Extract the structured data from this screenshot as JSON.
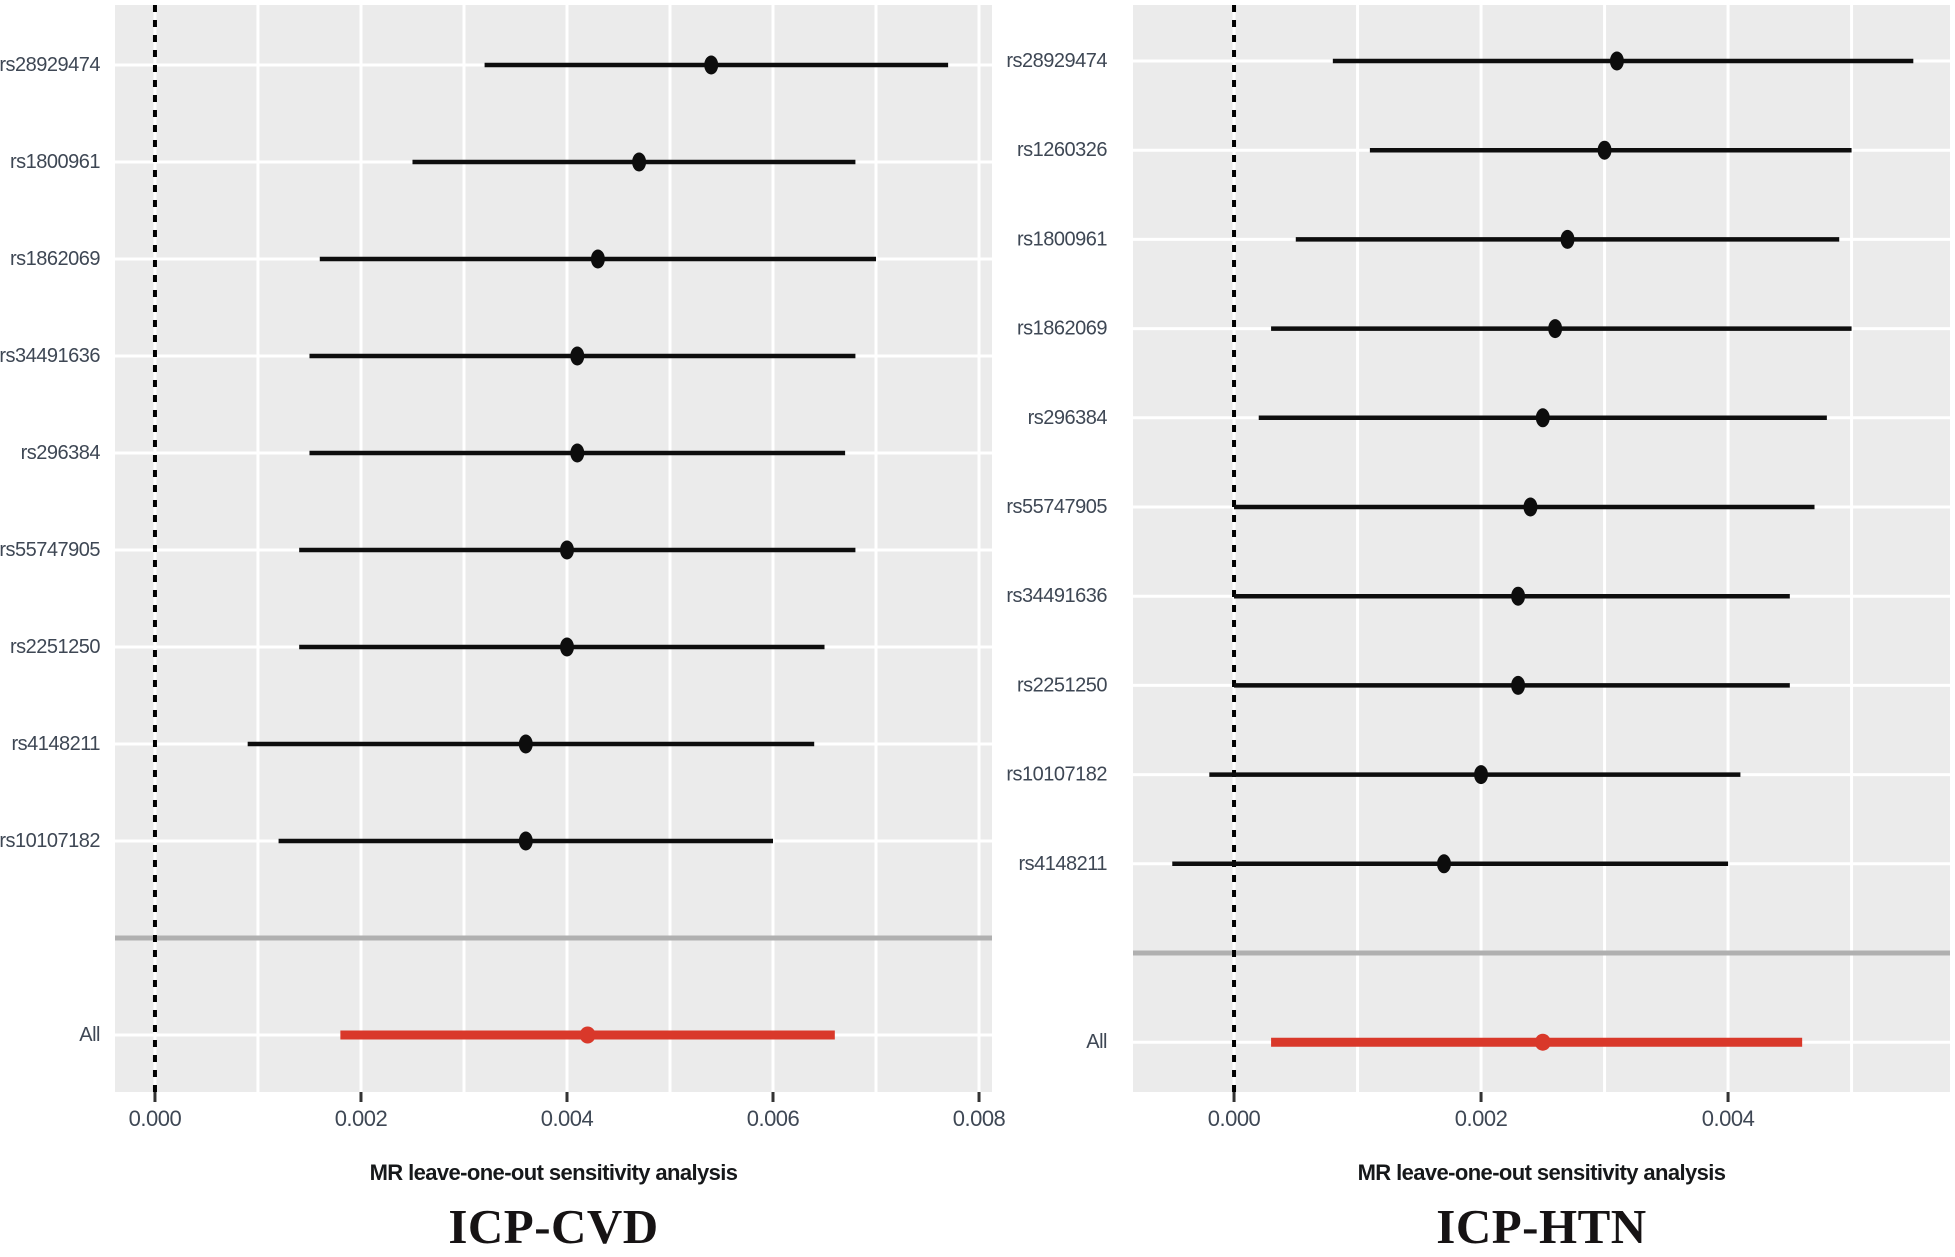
{
  "figure": {
    "kind": "MR leave-one-out forest plots",
    "panel_count": 2
  },
  "colors": {
    "panel_background": "#ebebeb",
    "gridline": "#ffffff",
    "separator_line": "#b0b0b0",
    "axis_text": "#3e4754",
    "tick_mark": "#333333",
    "ci_line": "#0d0d0d",
    "highlight_red": "#d9382a"
  },
  "chart_data": [
    {
      "type": "forest",
      "title": "ICP-CVD",
      "xlabel": "MR leave-one-out sensitivity analysis",
      "legend_position": "none",
      "grid": true,
      "gridline_step": 0.001,
      "zero_line": 0.0,
      "xlim": [
        -0.000388,
        0.008126
      ],
      "x_ticks": [
        {
          "value": 0.0,
          "label": "0.000"
        },
        {
          "value": 0.002,
          "label": "0.002"
        },
        {
          "value": 0.004,
          "label": "0.004"
        },
        {
          "value": 0.006,
          "label": "0.006"
        },
        {
          "value": 0.008,
          "label": "0.008"
        }
      ],
      "rows": [
        {
          "label": "rs28929474",
          "est": 0.0054,
          "lo": 0.0032,
          "hi": 0.0077
        },
        {
          "label": "rs1800961",
          "est": 0.0047,
          "lo": 0.0025,
          "hi": 0.0068
        },
        {
          "label": "rs1862069",
          "est": 0.0043,
          "lo": 0.0016,
          "hi": 0.007
        },
        {
          "label": "rs34491636",
          "est": 0.0041,
          "lo": 0.0015,
          "hi": 0.0068
        },
        {
          "label": "rs296384",
          "est": 0.0041,
          "lo": 0.0015,
          "hi": 0.0067
        },
        {
          "label": "rs55747905",
          "est": 0.004,
          "lo": 0.0014,
          "hi": 0.0068
        },
        {
          "label": "rs2251250",
          "est": 0.004,
          "lo": 0.0014,
          "hi": 0.0065
        },
        {
          "label": "rs4148211",
          "est": 0.0036,
          "lo": 0.0009,
          "hi": 0.0064
        },
        {
          "label": "rs10107182",
          "est": 0.0036,
          "lo": 0.0012,
          "hi": 0.006
        },
        {
          "separator": true
        },
        {
          "label": "All",
          "est": 0.0042,
          "lo": 0.0018,
          "hi": 0.0066,
          "highlight": true
        }
      ]
    },
    {
      "type": "forest",
      "title": "ICP-HTN",
      "xlabel": "MR leave-one-out sensitivity analysis",
      "legend_position": "none",
      "grid": true,
      "gridline_step": 0.001,
      "zero_line": 0.0,
      "xlim": [
        -0.000818,
        0.005797
      ],
      "x_ticks": [
        {
          "value": 0.0,
          "label": "0.000"
        },
        {
          "value": 0.002,
          "label": "0.002"
        },
        {
          "value": 0.004,
          "label": "0.004"
        }
      ],
      "rows": [
        {
          "label": "rs28929474",
          "est": 0.0031,
          "lo": 0.0008,
          "hi": 0.0055
        },
        {
          "label": "rs1260326",
          "est": 0.003,
          "lo": 0.0011,
          "hi": 0.005
        },
        {
          "label": "rs1800961",
          "est": 0.0027,
          "lo": 0.0005,
          "hi": 0.0049
        },
        {
          "label": "rs1862069",
          "est": 0.0026,
          "lo": 0.0003,
          "hi": 0.005
        },
        {
          "label": "rs296384",
          "est": 0.0025,
          "lo": 0.0002,
          "hi": 0.0048
        },
        {
          "label": "rs55747905",
          "est": 0.0024,
          "lo": 0.0,
          "hi": 0.0047
        },
        {
          "label": "rs34491636",
          "est": 0.0023,
          "lo": 0.0,
          "hi": 0.0045
        },
        {
          "label": "rs2251250",
          "est": 0.0023,
          "lo": 0.0,
          "hi": 0.0045
        },
        {
          "label": "rs10107182",
          "est": 0.002,
          "lo": -0.0002,
          "hi": 0.0041
        },
        {
          "label": "rs4148211",
          "est": 0.0017,
          "lo": -0.0005,
          "hi": 0.004
        },
        {
          "separator": true
        },
        {
          "label": "All",
          "est": 0.0025,
          "lo": 0.0003,
          "hi": 0.0046,
          "highlight": true
        }
      ]
    }
  ]
}
